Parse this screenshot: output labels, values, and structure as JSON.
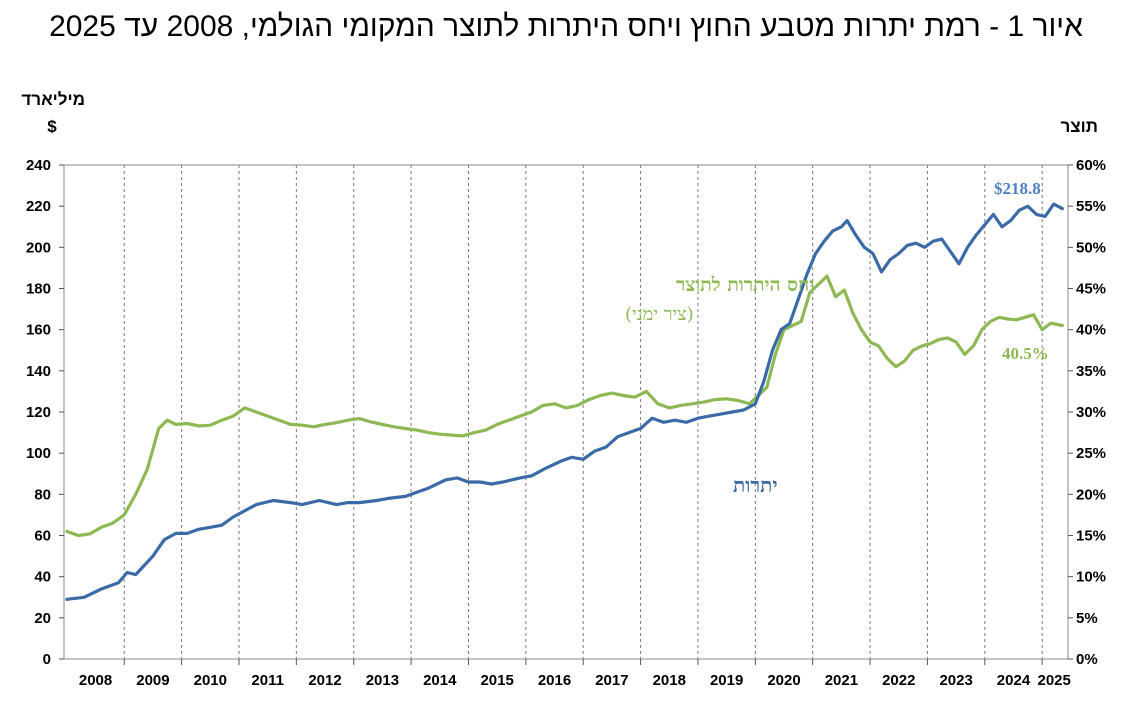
{
  "title": "איור 1 - רמת יתרות מטבע החוץ ויחס היתרות לתוצר המקומי הגולמי, 2008 עד 2025",
  "chart_data": {
    "type": "line",
    "left_axis": {
      "title_line1": "מיליארד",
      "title_line2": "$",
      "min": 0,
      "max": 240,
      "step": 20
    },
    "right_axis": {
      "title": "תוצר",
      "min": 0,
      "max": 60,
      "step": 5,
      "unit": "%"
    },
    "x_range": [
      2007.95,
      2025.45
    ],
    "year_labels": [
      "2008",
      "2009",
      "2010",
      "2011",
      "2012",
      "2013",
      "2014",
      "2015",
      "2016",
      "2017",
      "2018",
      "2019",
      "2020",
      "2021",
      "2022",
      "2023",
      "2024",
      "2025"
    ],
    "grid": "dashed vertical at year boundaries",
    "annotations": {
      "ratio_label": "יחס היתרות לתוצר",
      "ratio_sublabel": "(ציר ימני)",
      "reserves_label": "יתרות",
      "reserves_last_value": "$218.8",
      "ratio_last_value": "40.5%"
    },
    "series": [
      {
        "name": "יתרות",
        "axis": "left",
        "color": "#3b6aa8",
        "x": [
          2008.0,
          2008.3,
          2008.6,
          2008.9,
          2009.05,
          2009.2,
          2009.5,
          2009.7,
          2009.9,
          2010.1,
          2010.3,
          2010.5,
          2010.7,
          2010.9,
          2011.1,
          2011.3,
          2011.6,
          2011.9,
          2012.1,
          2012.4,
          2012.7,
          2012.9,
          2013.1,
          2013.4,
          2013.6,
          2013.9,
          2014.1,
          2014.3,
          2014.6,
          2014.8,
          2015.0,
          2015.2,
          2015.4,
          2015.6,
          2015.9,
          2016.1,
          2016.3,
          2016.6,
          2016.8,
          2017.0,
          2017.2,
          2017.4,
          2017.6,
          2017.9,
          2018.0,
          2018.2,
          2018.4,
          2018.6,
          2018.8,
          2019.0,
          2019.2,
          2019.4,
          2019.6,
          2019.8,
          2020.0,
          2020.15,
          2020.3,
          2020.45,
          2020.6,
          2020.75,
          2020.9,
          2021.05,
          2021.2,
          2021.35,
          2021.5,
          2021.6,
          2021.75,
          2021.9,
          2022.05,
          2022.2,
          2022.35,
          2022.5,
          2022.65,
          2022.8,
          2022.95,
          2023.1,
          2023.25,
          2023.4,
          2023.55,
          2023.7,
          2023.85,
          2024.0,
          2024.15,
          2024.3,
          2024.45,
          2024.6,
          2024.75,
          2024.9,
          2025.05,
          2025.2,
          2025.35
        ],
        "values": [
          29,
          30,
          34,
          37,
          42,
          41,
          50,
          58,
          61,
          61,
          63,
          64,
          65,
          69,
          72,
          75,
          77,
          76,
          75,
          77,
          75,
          76,
          76,
          77,
          78,
          79,
          81,
          83,
          87,
          88,
          86,
          86,
          85,
          86,
          88,
          89,
          92,
          96,
          98,
          97,
          101,
          103,
          108,
          111,
          112,
          117,
          115,
          116,
          115,
          117,
          118,
          119,
          120,
          121,
          124,
          135,
          150,
          160,
          163,
          175,
          187,
          197,
          203,
          208,
          210,
          213,
          206,
          200,
          197,
          188,
          194,
          197,
          201,
          202,
          200,
          203,
          204,
          198,
          192,
          200,
          206,
          211,
          216,
          210,
          213,
          218,
          220,
          216,
          215,
          221,
          218.8
        ]
      },
      {
        "name": "יחס היתרות לתוצר",
        "axis": "right",
        "color": "#8db853",
        "x": [
          2008.0,
          2008.2,
          2008.4,
          2008.6,
          2008.8,
          2009.0,
          2009.2,
          2009.4,
          2009.6,
          2009.75,
          2009.9,
          2010.1,
          2010.3,
          2010.5,
          2010.7,
          2010.9,
          2011.1,
          2011.3,
          2011.5,
          2011.7,
          2011.9,
          2012.1,
          2012.3,
          2012.5,
          2012.7,
          2012.9,
          2013.1,
          2013.3,
          2013.5,
          2013.7,
          2013.9,
          2014.1,
          2014.3,
          2014.5,
          2014.7,
          2014.9,
          2015.1,
          2015.3,
          2015.5,
          2015.7,
          2015.9,
          2016.1,
          2016.3,
          2016.5,
          2016.7,
          2016.9,
          2017.1,
          2017.3,
          2017.5,
          2017.7,
          2017.9,
          2018.1,
          2018.3,
          2018.5,
          2018.7,
          2018.9,
          2019.1,
          2019.3,
          2019.5,
          2019.7,
          2019.9,
          2020.05,
          2020.2,
          2020.35,
          2020.5,
          2020.65,
          2020.8,
          2020.95,
          2021.1,
          2021.25,
          2021.4,
          2021.55,
          2021.7,
          2021.85,
          2022.0,
          2022.15,
          2022.3,
          2022.45,
          2022.6,
          2022.75,
          2022.9,
          2023.05,
          2023.2,
          2023.35,
          2023.5,
          2023.65,
          2023.8,
          2023.95,
          2024.1,
          2024.25,
          2024.4,
          2024.55,
          2024.7,
          2024.85,
          2025.0,
          2025.15,
          2025.35
        ],
        "values": [
          15.5,
          15.0,
          15.2,
          16.0,
          16.5,
          17.5,
          20.0,
          23.0,
          28.0,
          29.0,
          28.5,
          28.6,
          28.3,
          28.4,
          29.0,
          29.5,
          30.5,
          30.0,
          29.5,
          29.0,
          28.5,
          28.4,
          28.2,
          28.5,
          28.7,
          29.0,
          29.2,
          28.8,
          28.5,
          28.2,
          28.0,
          27.8,
          27.5,
          27.3,
          27.2,
          27.1,
          27.5,
          27.8,
          28.5,
          29.0,
          29.5,
          30.0,
          30.8,
          31.0,
          30.5,
          30.8,
          31.5,
          32.0,
          32.3,
          32.0,
          31.8,
          32.5,
          31.0,
          30.5,
          30.8,
          31.0,
          31.2,
          31.5,
          31.6,
          31.4,
          31.0,
          32.0,
          33.0,
          37.0,
          40.0,
          40.5,
          41.0,
          44.5,
          45.5,
          46.5,
          44.0,
          44.8,
          42.0,
          40.0,
          38.5,
          38.0,
          36.5,
          35.5,
          36.2,
          37.5,
          38.0,
          38.3,
          38.8,
          39.0,
          38.5,
          37.0,
          38.0,
          40.0,
          41.0,
          41.5,
          41.3,
          41.2,
          41.5,
          41.8,
          40.0,
          40.8,
          40.5
        ]
      }
    ]
  }
}
